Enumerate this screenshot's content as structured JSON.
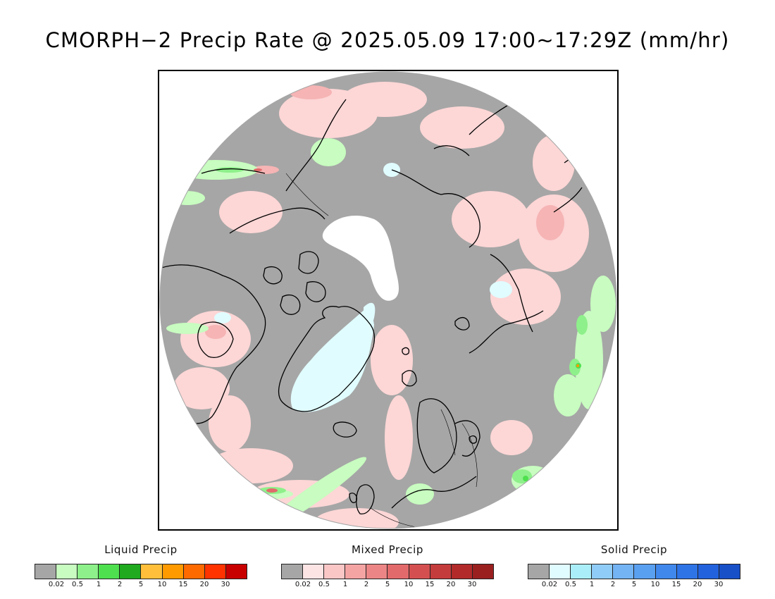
{
  "header": {
    "title": "CMORPH−2 Precip Rate @ 2025.05.09 17:00~17:29Z (mm/hr)"
  },
  "map": {
    "projection": "north polar stereographic",
    "background_color": "#a6a6a6",
    "no_data_color": "#ffffff",
    "coastline_color": "#000000"
  },
  "legends": [
    {
      "title": "Liquid Precip",
      "colors": [
        "#a6a6a6",
        "#c8fcc0",
        "#8ef08a",
        "#4fe04f",
        "#1faa1f",
        "#ffbf3a",
        "#ff9a00",
        "#ff6a00",
        "#ff3300",
        "#c80000"
      ],
      "ticks": [
        "0.02",
        "0.5",
        "1",
        "2",
        "5",
        "10",
        "15",
        "20",
        "30"
      ]
    },
    {
      "title": "Mixed Precip",
      "colors": [
        "#a6a6a6",
        "#fde4e4",
        "#fbc6c6",
        "#f5a4a4",
        "#ec8686",
        "#e26a6a",
        "#d45050",
        "#c53c3c",
        "#b22a2a",
        "#9a2020"
      ],
      "ticks": [
        "0.02",
        "0.5",
        "1",
        "2",
        "5",
        "10",
        "15",
        "20",
        "30"
      ]
    },
    {
      "title": "Solid Precip",
      "colors": [
        "#a6a6a6",
        "#e0fcff",
        "#aaeefa",
        "#90ccf8",
        "#74b4f4",
        "#5aa0f0",
        "#4088ec",
        "#2e74e6",
        "#2262dc",
        "#1850c8"
      ],
      "ticks": [
        "0.02",
        "0.5",
        "1",
        "2",
        "5",
        "10",
        "15",
        "20",
        "30"
      ]
    }
  ]
}
